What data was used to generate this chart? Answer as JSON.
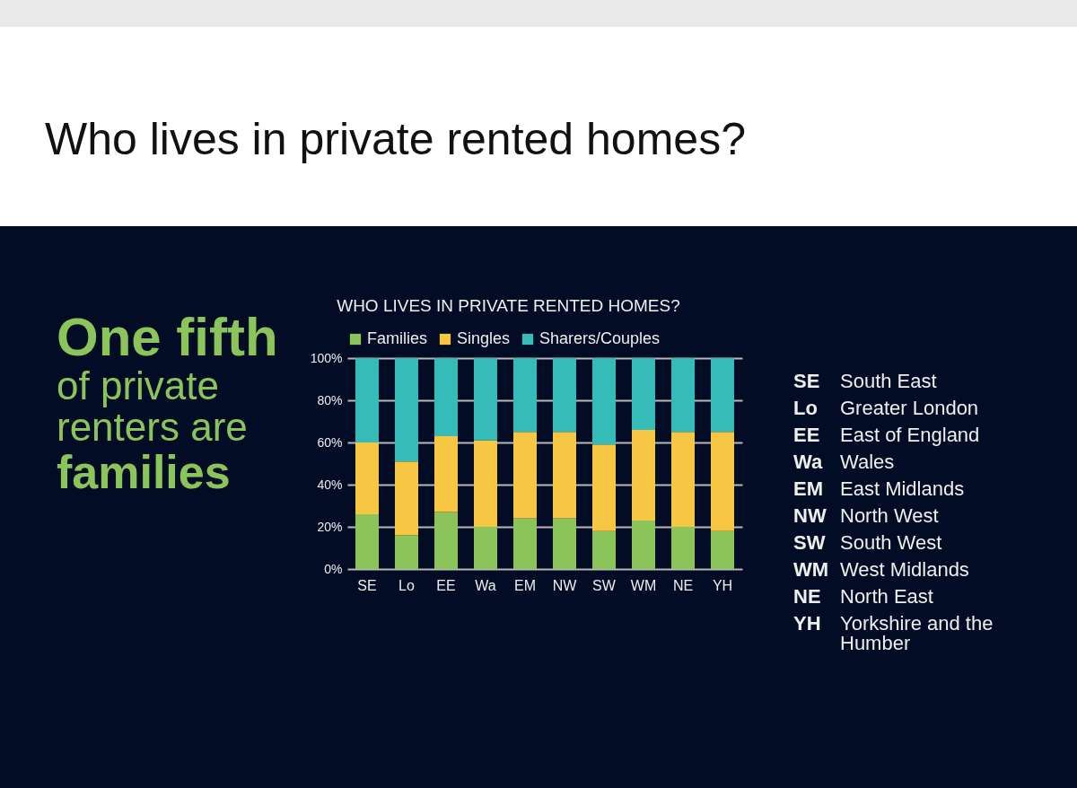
{
  "chart_data": {
    "type": "bar",
    "title": "Who lives in private rented homes?",
    "subtitle": "WHO LIVES IN PRIVATE RENTED HOMES?",
    "categories": [
      "SE",
      "Lo",
      "EE",
      "Wa",
      "EM",
      "NW",
      "SW",
      "WM",
      "NE",
      "YH"
    ],
    "series": [
      {
        "name": "Families",
        "color": "#8cc45c",
        "values": [
          26,
          16,
          27,
          20,
          24,
          24,
          18,
          23,
          20,
          18
        ]
      },
      {
        "name": "Singles",
        "color": "#f7c744",
        "values": [
          34,
          35,
          36,
          41,
          41,
          41,
          41,
          43,
          45,
          47
        ]
      },
      {
        "name": "Sharers/Couples",
        "color": "#36bcb8",
        "values": [
          40,
          49,
          37,
          39,
          35,
          35,
          41,
          34,
          35,
          35
        ]
      }
    ],
    "stacked": true,
    "ylim": [
      0,
      100
    ],
    "yticks": [
      {
        "value": 0,
        "label": "0%"
      },
      {
        "value": 20,
        "label": "20%"
      },
      {
        "value": 40,
        "label": "40%"
      },
      {
        "value": 60,
        "label": "60%"
      },
      {
        "value": 80,
        "label": "80%"
      },
      {
        "value": 100,
        "label": "100%"
      }
    ],
    "grid": "y",
    "legend": "top left",
    "annotations": [
      "One fifth",
      "of private renters are",
      "families",
      "SE South East",
      "Lo Greater London",
      "EE East of England",
      "Wa Wales",
      "EM East Midlands",
      "NW North West",
      "SW South West",
      "WM West Midlands",
      "NE North East",
      "YH Yorkshire and the Humber"
    ]
  }
}
